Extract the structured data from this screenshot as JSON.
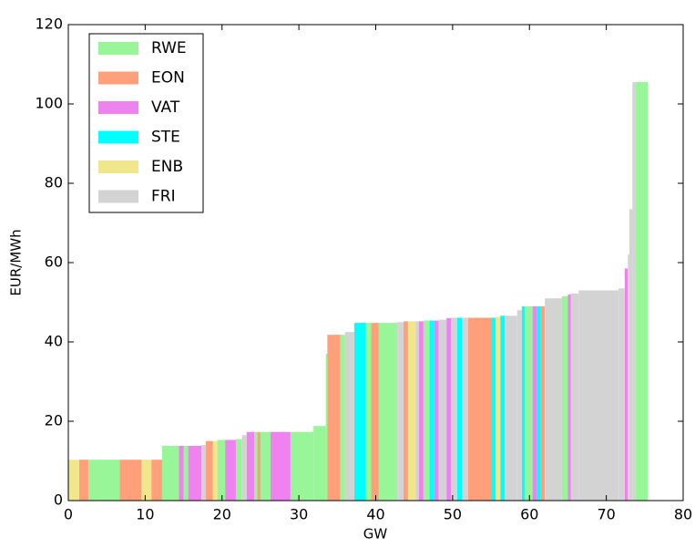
{
  "chart_data": {
    "type": "merit-order",
    "xlabel": "GW",
    "ylabel": "EUR/MWh",
    "xlim": [
      0,
      80
    ],
    "ylim": [
      0,
      120
    ],
    "xticks": [
      0,
      10,
      20,
      30,
      40,
      50,
      60,
      70,
      80
    ],
    "yticks": [
      0,
      20,
      40,
      60,
      80,
      100,
      120
    ],
    "legend": "upper left",
    "series": [
      {
        "name": "RWE",
        "color": "#98f598",
        "x0": [
          2.6,
          12.2,
          15.0,
          19.4,
          21.8,
          24.2,
          25.0,
          28.9,
          31.9,
          33.5,
          35.4,
          38.7,
          40.4,
          46.2,
          59.4,
          64.2,
          73.8
        ],
        "x1": [
          6.7,
          14.4,
          15.6,
          20.4,
          22.6,
          24.6,
          26.3,
          31.9,
          33.5,
          33.7,
          36.0,
          39.4,
          42.8,
          47.0,
          60.4,
          65.0,
          75.4
        ],
        "values": [
          10.3,
          13.8,
          13.8,
          15.3,
          15.5,
          17.3,
          17.3,
          17.3,
          18.8,
          37,
          41.8,
          44.8,
          44.8,
          45.4,
          49,
          51.5,
          105.5
        ]
      },
      {
        "name": "EON",
        "color": "#ffa07a",
        "x0": [
          1.4,
          6.7,
          10.8,
          17.9,
          24.6,
          33.7,
          39.4,
          43.6,
          52.0,
          61.4
        ],
        "x1": [
          2.6,
          9.5,
          12.2,
          18.8,
          25.0,
          35.4,
          40.4,
          44.2,
          55.0,
          62.0
        ],
        "values": [
          10.3,
          10.3,
          10.3,
          15,
          17.3,
          41.8,
          44.8,
          45.2,
          46.1,
          49
        ]
      },
      {
        "name": "VAT",
        "color": "#ee82ee",
        "x0": [
          14.4,
          15.6,
          20.4,
          23.2,
          26.3,
          45.6,
          47.6,
          49.2,
          60.4,
          65.0,
          72.4
        ],
        "x1": [
          15.0,
          17.3,
          21.8,
          24.2,
          28.9,
          46.2,
          48.2,
          49.8,
          61.0,
          65.4,
          72.8
        ],
        "values": [
          13.8,
          13.8,
          15.3,
          17.3,
          17.3,
          45.2,
          45.4,
          46,
          49,
          52,
          58.5
        ]
      },
      {
        "name": "STE",
        "color": "#00ffff",
        "x0": [
          37.2,
          47.0,
          50.6,
          55.0,
          56.2,
          59.0,
          61.0
        ],
        "x1": [
          38.7,
          47.6,
          51.2,
          55.6,
          56.8,
          59.4,
          61.4
        ],
        "values": [
          44.8,
          45.4,
          46.1,
          46.1,
          46.6,
          49,
          49
        ]
      },
      {
        "name": "ENB",
        "color": "#f0e68c",
        "x0": [
          0,
          9.5,
          18.8,
          44.2,
          55.6
        ],
        "x1": [
          1.4,
          10.8,
          19.4,
          45.2,
          56.2
        ],
        "values": [
          10.3,
          10.3,
          15,
          45.2,
          46.3
        ]
      },
      {
        "name": "FRI",
        "color": "#d3d3d3",
        "x0": [
          17.3,
          22.6,
          36.0,
          42.8,
          45.2,
          48.2,
          49.8,
          51.2,
          56.8,
          58.4,
          62.0,
          65.4,
          66.4,
          71.6,
          72.8,
          73.0,
          73.4
        ],
        "x1": [
          17.9,
          23.2,
          37.2,
          43.6,
          45.6,
          49.2,
          50.6,
          52.0,
          58.4,
          59.0,
          64.2,
          66.4,
          71.6,
          72.4,
          73.0,
          73.4,
          73.8
        ],
        "values": [
          14,
          16.5,
          42.5,
          45,
          45.2,
          45.6,
          46.1,
          46.1,
          46.6,
          48,
          51,
          52.2,
          53,
          53.5,
          62,
          73.5,
          105.5
        ]
      }
    ]
  }
}
